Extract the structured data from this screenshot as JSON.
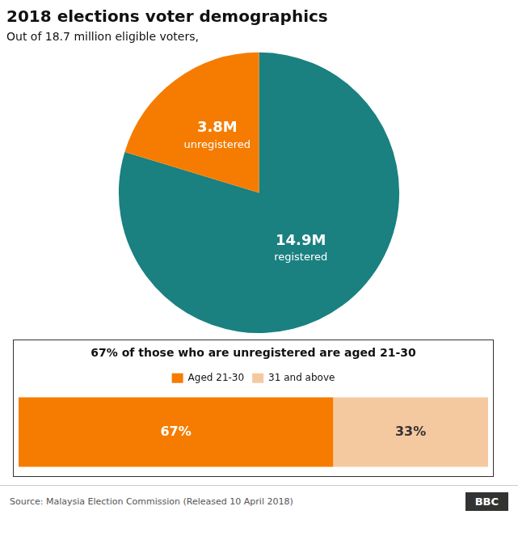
{
  "chart_data": [
    {
      "type": "pie",
      "title": "2018 elections voter demographics",
      "subtitle": "Out of 18.7 million eligible voters,",
      "categories": [
        "registered",
        "unregistered"
      ],
      "values": [
        14.9,
        3.8
      ],
      "value_labels": [
        "14.9M",
        "3.8M"
      ],
      "colors": [
        "#1A8080",
        "#F57C00"
      ],
      "data_labels": true
    },
    {
      "type": "bar",
      "title": "67% of those who are unregistered are aged 21-30",
      "orientation": "horizontal",
      "stacked": true,
      "categories": [
        null
      ],
      "series": [
        {
          "name": "Aged 21-30",
          "color": "#F57C00",
          "values": [
            67
          ],
          "value_labels": [
            "67%"
          ]
        },
        {
          "name": "31 and above",
          "color": "#F5C9A0",
          "values": [
            33
          ],
          "value_labels": [
            "33%"
          ]
        }
      ],
      "xlim": [
        0,
        100
      ],
      "legend": "top",
      "data_labels": true,
      "tick_labels": false,
      "grid": false,
      "annotations": [
        "Source: Malaysia Election Commission (Released 10 April 2018)",
        "BBC"
      ]
    }
  ]
}
